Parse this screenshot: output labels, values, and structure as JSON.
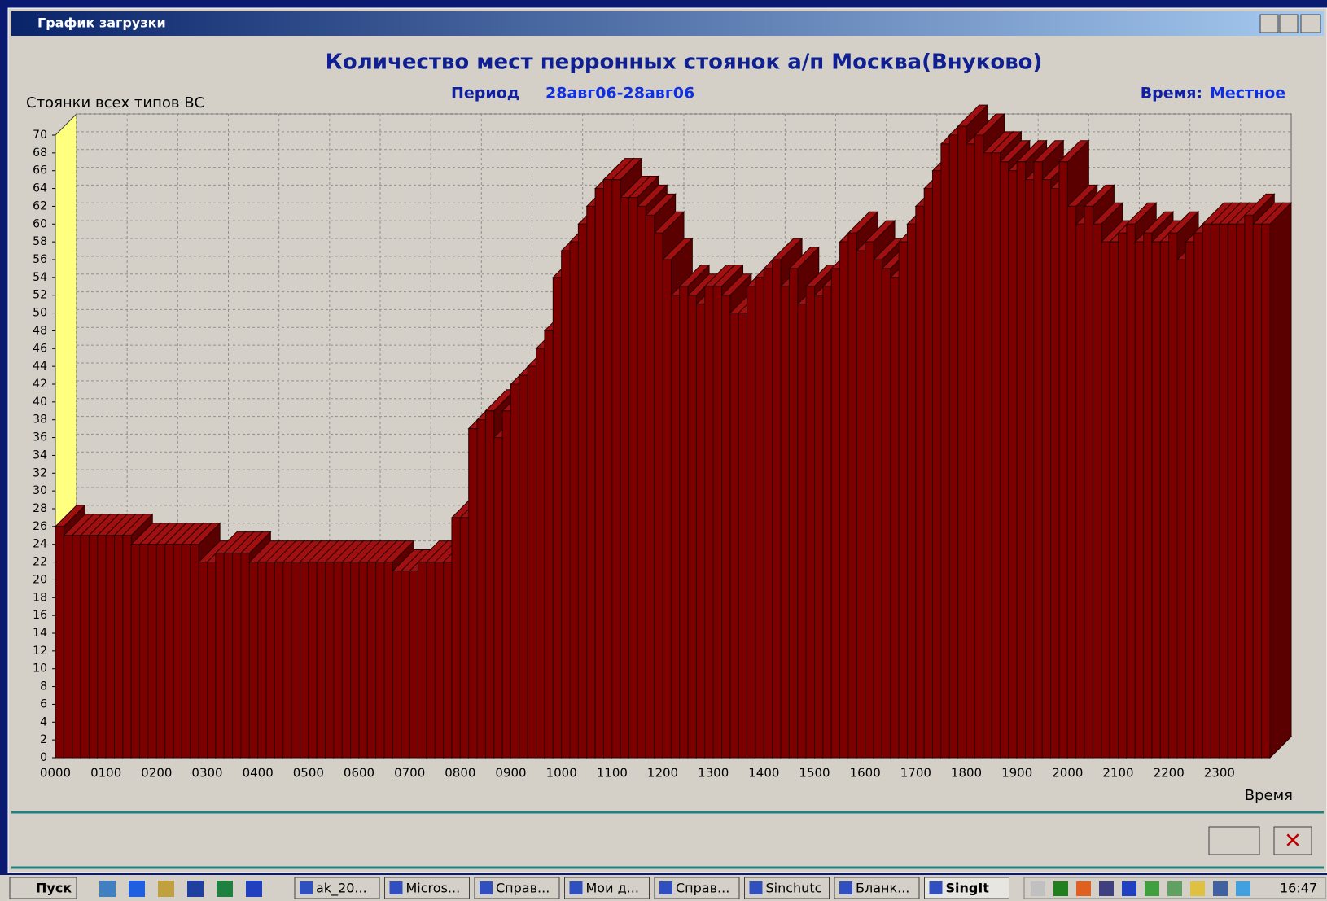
{
  "window": {
    "title": "График загрузки"
  },
  "chart_data": {
    "type": "bar3d",
    "title": "Количество мест перронных стоянок а/п Москва(Внуково)",
    "period_label": "Период",
    "period": "28авг06-28авг06",
    "time_label": "Время:",
    "time_value": "Местное",
    "y_label": "Стоянки всех типов ВС",
    "x_label": "Время",
    "color": "#7d0000",
    "grid": true,
    "xlim": [
      0,
      1440
    ],
    "ylim": [
      0,
      70
    ],
    "xticks": [
      {
        "value": 0,
        "label": "0000"
      },
      {
        "value": 60,
        "label": "0100"
      },
      {
        "value": 120,
        "label": "0200"
      },
      {
        "value": 180,
        "label": "0300"
      },
      {
        "value": 240,
        "label": "0400"
      },
      {
        "value": 300,
        "label": "0500"
      },
      {
        "value": 360,
        "label": "0600"
      },
      {
        "value": 420,
        "label": "0700"
      },
      {
        "value": 480,
        "label": "0800"
      },
      {
        "value": 540,
        "label": "0900"
      },
      {
        "value": 600,
        "label": "1000"
      },
      {
        "value": 660,
        "label": "1100"
      },
      {
        "value": 720,
        "label": "1200"
      },
      {
        "value": 780,
        "label": "1300"
      },
      {
        "value": 840,
        "label": "1400"
      },
      {
        "value": 900,
        "label": "1500"
      },
      {
        "value": 960,
        "label": "1600"
      },
      {
        "value": 1020,
        "label": "1700"
      },
      {
        "value": 1080,
        "label": "1800"
      },
      {
        "value": 1140,
        "label": "1900"
      },
      {
        "value": 1200,
        "label": "2000"
      },
      {
        "value": 1260,
        "label": "2100"
      },
      {
        "value": 1320,
        "label": "2200"
      },
      {
        "value": 1380,
        "label": "2300"
      }
    ],
    "yticks": [
      0,
      2,
      4,
      6,
      8,
      10,
      12,
      14,
      16,
      18,
      20,
      22,
      24,
      26,
      28,
      30,
      32,
      34,
      36,
      38,
      40,
      42,
      44,
      46,
      48,
      50,
      52,
      54,
      56,
      58,
      60,
      62,
      64,
      66,
      68,
      70
    ],
    "x": [
      0,
      10,
      20,
      30,
      40,
      50,
      60,
      70,
      80,
      90,
      100,
      110,
      120,
      130,
      140,
      150,
      160,
      170,
      180,
      190,
      200,
      210,
      220,
      230,
      240,
      250,
      260,
      270,
      280,
      290,
      300,
      310,
      320,
      330,
      340,
      350,
      360,
      370,
      380,
      390,
      400,
      410,
      420,
      430,
      440,
      450,
      460,
      470,
      480,
      490,
      500,
      510,
      520,
      530,
      540,
      550,
      560,
      570,
      580,
      590,
      600,
      610,
      620,
      630,
      640,
      650,
      660,
      670,
      680,
      690,
      700,
      710,
      720,
      730,
      740,
      750,
      760,
      770,
      780,
      790,
      800,
      810,
      820,
      830,
      840,
      850,
      860,
      870,
      880,
      890,
      900,
      910,
      920,
      930,
      940,
      950,
      960,
      970,
      980,
      990,
      1000,
      1010,
      1020,
      1030,
      1040,
      1050,
      1060,
      1070,
      1080,
      1090,
      1100,
      1110,
      1120,
      1130,
      1140,
      1150,
      1160,
      1170,
      1180,
      1190,
      1200,
      1210,
      1220,
      1230,
      1240,
      1250,
      1260,
      1270,
      1280,
      1290,
      1300,
      1310,
      1320,
      1330,
      1340,
      1350,
      1360,
      1370,
      1380,
      1390,
      1400,
      1410,
      1420,
      1430
    ],
    "values": [
      26,
      25,
      25,
      25,
      25,
      25,
      25,
      25,
      25,
      24,
      24,
      24,
      24,
      24,
      24,
      24,
      24,
      22,
      22,
      23,
      23,
      23,
      23,
      22,
      22,
      22,
      22,
      22,
      22,
      22,
      22,
      22,
      22,
      22,
      22,
      22,
      22,
      22,
      22,
      22,
      21,
      21,
      21,
      22,
      22,
      22,
      22,
      27,
      27,
      37,
      38,
      39,
      36,
      39,
      42,
      43,
      44,
      46,
      48,
      54,
      57,
      58,
      60,
      62,
      64,
      65,
      65,
      63,
      63,
      62,
      61,
      59,
      56,
      52,
      53,
      52,
      51,
      53,
      53,
      52,
      50,
      50,
      53,
      54,
      55,
      56,
      53,
      55,
      51,
      53,
      52,
      53,
      55,
      58,
      59,
      57,
      58,
      56,
      55,
      54,
      58,
      60,
      62,
      64,
      66,
      69,
      70,
      71,
      69,
      70,
      68,
      68,
      67,
      66,
      67,
      65,
      67,
      65,
      64,
      67,
      62,
      60,
      62,
      60,
      58,
      58,
      59,
      60,
      58,
      59,
      58,
      58,
      59,
      56,
      58,
      59,
      60,
      60,
      60,
      60,
      60,
      61,
      60,
      60
    ]
  },
  "taskbar": {
    "start": "Пуск",
    "items": [
      "ak_20...",
      "Micros...",
      "Справ...",
      "Мои д...",
      "Справ...",
      "Sinchutc",
      "Бланк...",
      "SingIt"
    ],
    "clock": "16:47"
  }
}
